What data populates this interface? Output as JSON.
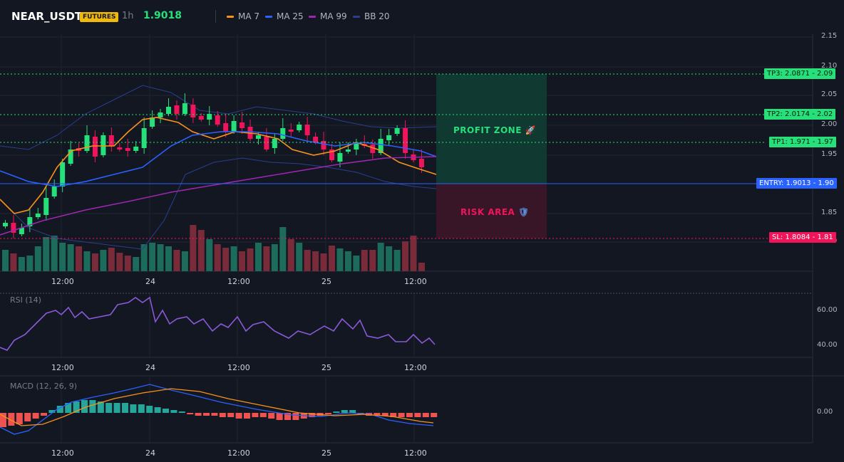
{
  "header": {
    "symbol": "NEAR_USDT",
    "badge": "FUTURES",
    "timeframe": "1h",
    "price": "1.9018",
    "indicators": [
      {
        "name": "MA 7",
        "color": "#f7931a"
      },
      {
        "name": "MA 25",
        "color": "#2962ff"
      },
      {
        "name": "MA 99",
        "color": "#9c27b0"
      },
      {
        "name": "BB 20",
        "color": "#1e3a8a"
      }
    ]
  },
  "price_axis": [
    "2.15",
    "2.10",
    "2.05",
    "2.00",
    "1.95",
    "1.90",
    "1.85",
    "1.80"
  ],
  "levels": {
    "tp3": {
      "text": "TP3: 2.0871",
      "axis": "2.09",
      "color": "#26e07a"
    },
    "tp2": {
      "text": "TP2: 2.0174",
      "axis": "2.02",
      "color": "#26e07a"
    },
    "tp1": {
      "text": "TP1: 1.971",
      "axis": "1.97",
      "color": "#26e07a"
    },
    "entry": {
      "text": "ENTRY: 1.9013",
      "axis": "1.90",
      "color": "#2962ff"
    },
    "sl": {
      "text": "SL: 1.8084",
      "axis": "1.81",
      "color": "#f0145a"
    }
  },
  "zones": {
    "profit": "PROFIT ZONE",
    "profit_icon": "🚀",
    "risk": "RISK AREA",
    "risk_icon": "🛡"
  },
  "time_axis": [
    "12:00",
    "24",
    "12:00",
    "25",
    "12:00"
  ],
  "rsi": {
    "title": "RSI (14)",
    "axis": [
      "60.00",
      "40.00"
    ]
  },
  "macd": {
    "title": "MACD (12, 26, 9)",
    "axis": [
      "0.00"
    ]
  },
  "colors": {
    "up": "#26e07a",
    "down": "#f0145a",
    "up_vol": "#1d6b5b",
    "down_vol": "#7a2b3a",
    "grid": "#1f2430"
  }
}
